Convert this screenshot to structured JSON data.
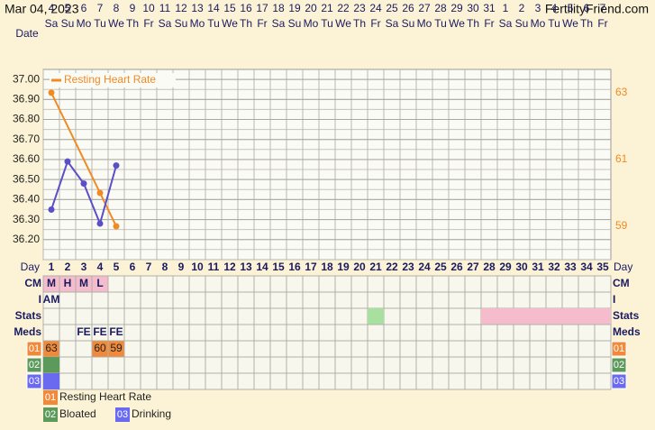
{
  "header": {
    "date": "Mar 04, 2023",
    "site": "FertilityFriend.com"
  },
  "chart_data": {
    "type": "line",
    "x_label": "Date",
    "categories": [
      "4",
      "5",
      "6",
      "7",
      "8",
      "9",
      "10",
      "11",
      "12",
      "13",
      "14",
      "15",
      "16",
      "17",
      "18",
      "19",
      "20",
      "21",
      "22",
      "23",
      "24",
      "25",
      "26",
      "27",
      "28",
      "29",
      "30",
      "31",
      "1",
      "2",
      "3",
      "4",
      "5",
      "6",
      "7"
    ],
    "weekdays": [
      "Sa",
      "Su",
      "Mo",
      "Tu",
      "We",
      "Th",
      "Fr",
      "Sa",
      "Su",
      "Mo",
      "Tu",
      "We",
      "Th",
      "Fr",
      "Sa",
      "Su",
      "Mo",
      "Tu",
      "We",
      "Th",
      "Fr",
      "Sa",
      "Su",
      "Mo",
      "Tu",
      "We",
      "Th",
      "Fr",
      "Sa",
      "Su",
      "Mo",
      "Tu",
      "We",
      "Th",
      "Fr"
    ],
    "xlim": [
      0.5,
      35.5
    ],
    "ylim": [
      36.1,
      37.05
    ],
    "yticks": [
      {
        "value": 36.2,
        "label": "36.20"
      },
      {
        "value": 36.3,
        "label": "36.30"
      },
      {
        "value": 36.4,
        "label": "36.40"
      },
      {
        "value": 36.5,
        "label": "36.50"
      },
      {
        "value": 36.6,
        "label": "36.60"
      },
      {
        "value": 36.7,
        "label": "36.70"
      },
      {
        "value": 36.8,
        "label": "36.80"
      },
      {
        "value": 36.9,
        "label": "36.90"
      },
      {
        "value": 37.0,
        "label": "37.00"
      }
    ],
    "y2lim": [
      58,
      63.7
    ],
    "y2ticks": [
      59,
      61,
      63
    ],
    "grid": true,
    "series": [
      {
        "name": "Resting Heart Rate",
        "color": "#f08a24",
        "axis": "y2",
        "x": [
          1,
          4,
          5
        ],
        "values": [
          63,
          60,
          59
        ]
      },
      {
        "color": "#5b4fc7",
        "x": [
          1,
          2,
          3,
          4,
          5
        ],
        "values": [
          36.35,
          36.59,
          36.48,
          36.28,
          36.57
        ]
      }
    ]
  },
  "table": {
    "day_label": "Day",
    "days": [
      1,
      2,
      3,
      4,
      5,
      6,
      7,
      8,
      9,
      10,
      11,
      12,
      13,
      14,
      15,
      16,
      17,
      18,
      19,
      20,
      21,
      22,
      23,
      24,
      25,
      26,
      27,
      28,
      29,
      30,
      31,
      32,
      33,
      34,
      35
    ],
    "rows": [
      {
        "label": "CM",
        "cells": [
          "M",
          "H",
          "M",
          "L"
        ]
      },
      {
        "label": "I",
        "cells": [
          "AM"
        ]
      },
      {
        "label": "Stats"
      },
      {
        "label": "Meds",
        "cells": [
          null,
          null,
          "FE",
          "FE",
          "FE"
        ]
      },
      {
        "label": "01"
      },
      {
        "label": "02"
      },
      {
        "label": "03"
      }
    ],
    "legend": [
      {
        "code": "01"
      },
      {
        "code": "02",
        "name": "Bloated"
      },
      {
        "code": "03",
        "name": "Drinking"
      }
    ]
  }
}
